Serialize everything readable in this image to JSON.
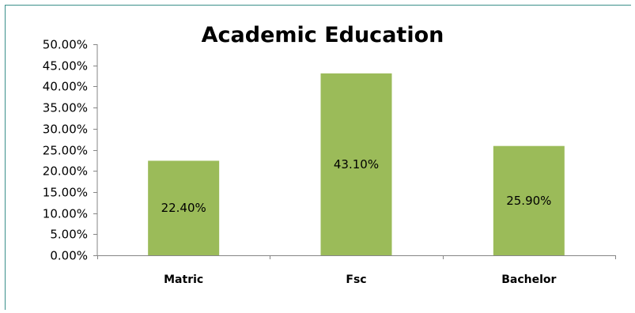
{
  "chart_data": {
    "type": "bar",
    "title": "Academic Education",
    "xlabel": "",
    "ylabel": "",
    "categories": [
      "Matric",
      "Fsc",
      "Bachelor"
    ],
    "values": [
      22.4,
      43.1,
      25.9
    ],
    "data_labels": [
      "22.40%",
      "43.10%",
      "25.90%"
    ],
    "ylim": [
      0,
      50
    ],
    "yticks": [
      0,
      5,
      10,
      15,
      20,
      25,
      30,
      35,
      40,
      45,
      50
    ],
    "ytick_labels": [
      "0.00%",
      "5.00%",
      "10.00%",
      "15.00%",
      "20.00%",
      "25.00%",
      "30.00%",
      "35.00%",
      "40.00%",
      "45.00%",
      "50.00%"
    ],
    "grid": false,
    "legend": "none",
    "bar_color": "#9bbb59",
    "frame_color": "#3a8f8a"
  }
}
